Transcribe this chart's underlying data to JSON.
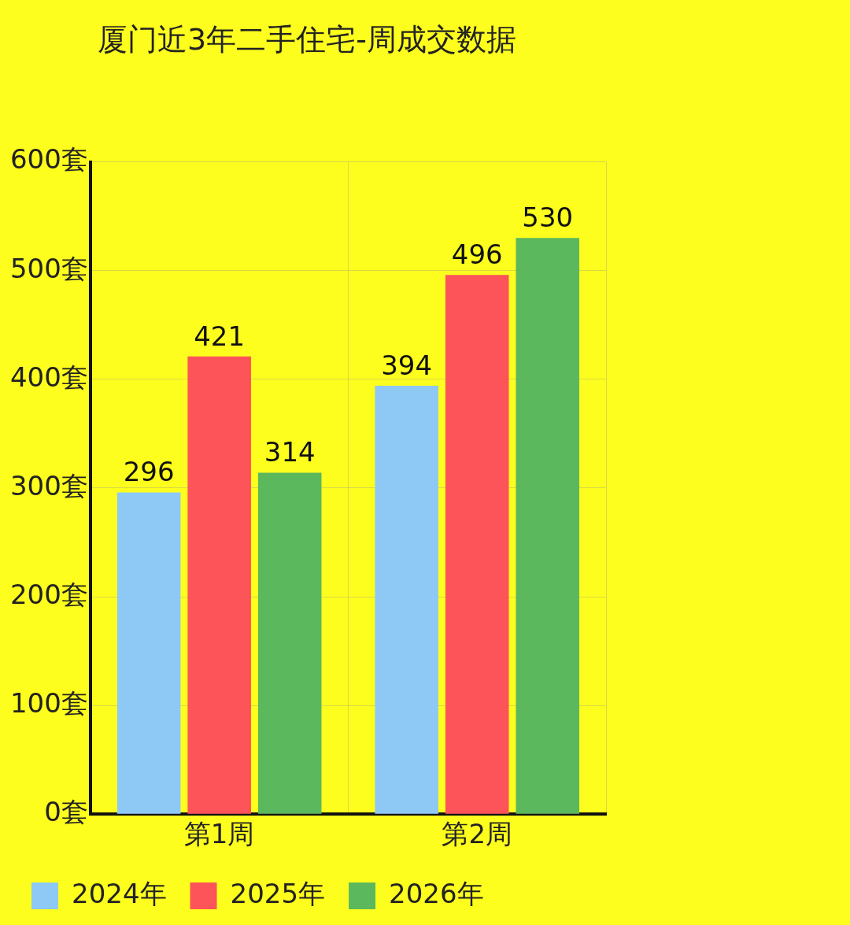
{
  "chart_data": {
    "type": "bar",
    "title": "厦门近3年二手住宅-周成交数据",
    "categories": [
      "第1周",
      "第2周"
    ],
    "series": [
      {
        "name": "2024年",
        "color": "#8ec9f5",
        "values": [
          296,
          394
        ]
      },
      {
        "name": "2025年",
        "color": "#fc5459",
        "values": [
          421,
          496
        ]
      },
      {
        "name": "2026年",
        "color": "#5cb85c",
        "values": [
          314,
          530
        ]
      }
    ],
    "ylim": [
      0,
      600
    ],
    "yticks": [
      {
        "value": 0,
        "label": "0套"
      },
      {
        "value": 100,
        "label": "100套"
      },
      {
        "value": 200,
        "label": "200套"
      },
      {
        "value": 300,
        "label": "300套"
      },
      {
        "value": 400,
        "label": "400套"
      },
      {
        "value": 500,
        "label": "500套"
      },
      {
        "value": 600,
        "label": "600套"
      }
    ],
    "grid": true,
    "legend": "bottom",
    "data_labels": true
  }
}
